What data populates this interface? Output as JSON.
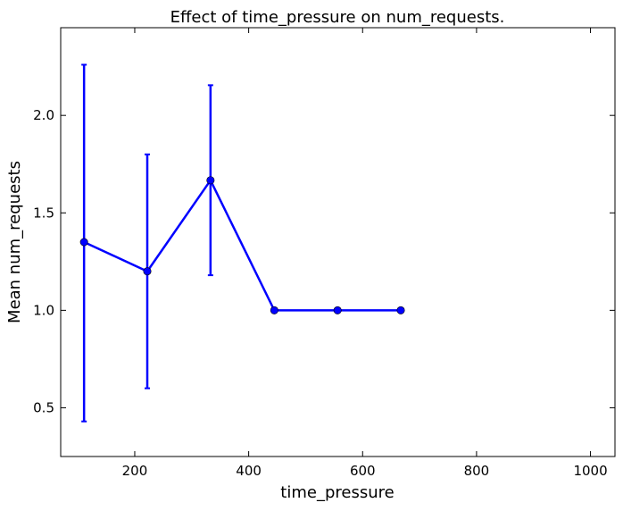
{
  "chart_data": {
    "type": "line",
    "title": "Effect of time_pressure on num_requests.",
    "xlabel": "time_pressure",
    "ylabel": "Mean num_requests",
    "xlim": [
      70,
      1043
    ],
    "ylim": [
      0.25,
      2.45
    ],
    "xticks": [
      200,
      400,
      600,
      800,
      1000
    ],
    "yticks": [
      0.5,
      1.0,
      1.5,
      2.0
    ],
    "xtick_labels": [
      "200",
      "400",
      "600",
      "800",
      "1000"
    ],
    "ytick_labels": [
      "0.5",
      "1.0",
      "1.5",
      "2.0"
    ],
    "grid": false,
    "series": [
      {
        "color": "#0000ff",
        "x": [
          111,
          222,
          333,
          445,
          556,
          667
        ],
        "y": [
          1.35,
          1.2,
          1.667,
          1.0,
          1.0,
          1.0
        ],
        "yerr_low": [
          0.43,
          0.6,
          1.18,
          1.0,
          1.0,
          1.0
        ],
        "yerr_high": [
          2.26,
          1.8,
          2.155,
          1.0,
          1.0,
          1.0
        ]
      }
    ]
  }
}
